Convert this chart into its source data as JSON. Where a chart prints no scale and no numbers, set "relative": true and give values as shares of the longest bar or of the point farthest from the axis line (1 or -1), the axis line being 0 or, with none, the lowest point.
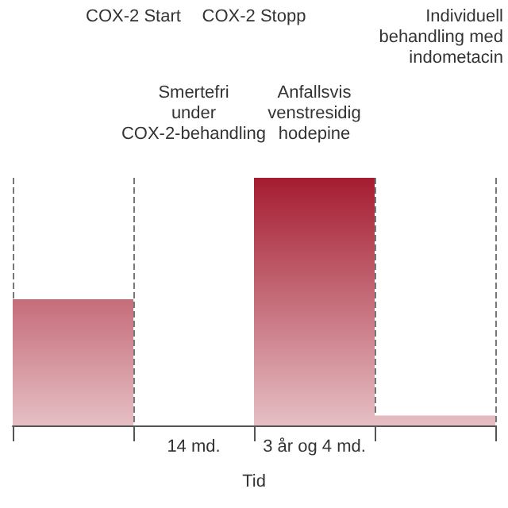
{
  "chart_data": {
    "type": "bar",
    "relative": true,
    "xlabel": "Tid",
    "categories": [
      null,
      "14 md.",
      "3 år og 4 md.",
      null
    ],
    "values": [
      0.51,
      0,
      1,
      0.04
    ],
    "color": "#a51c30",
    "grid": "x",
    "line_style": "dashed",
    "annotations": [
      "COX-2 Start",
      "COX-2 Stopp",
      "Individuell behandling med indometacin",
      "Smertefri under COX-2-behandling",
      "Anfallsvis venstresidig hodepine"
    ]
  }
}
